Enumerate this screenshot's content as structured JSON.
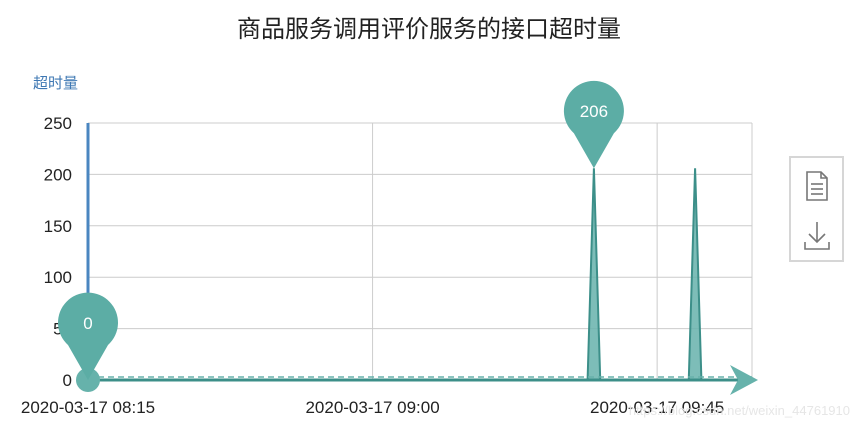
{
  "chart_data": {
    "type": "area",
    "title": "商品服务调用评价服务的接口超时量",
    "ylabel": "超时量",
    "xlabel": "",
    "ylim": [
      0,
      250
    ],
    "yticks": [
      "0",
      "50",
      "100",
      "150",
      "200",
      "250"
    ],
    "x_tick_labels": [
      "2020-03-17 08:15",
      "2020-03-17 09:00",
      "2020-03-17 09:45"
    ],
    "x": [
      "08:15",
      "08:50",
      "09:00",
      "09:34",
      "09:35",
      "09:36",
      "09:50",
      "09:51",
      "09:52",
      "10:00"
    ],
    "values": [
      0,
      0,
      0,
      0,
      206,
      0,
      0,
      206,
      0,
      0
    ],
    "markpoints": [
      {
        "label": "206",
        "x": "09:35",
        "value": 206
      },
      {
        "label": "0",
        "x": "08:15",
        "value": 0
      }
    ],
    "grid": true,
    "colors": {
      "series": "#3c8f89",
      "fill": "#66b2ab",
      "pin": "#5cada5",
      "axis": "#4a86c0",
      "grid": "#cccccc"
    }
  },
  "toolbox": {
    "data_view_icon": "data-view-icon",
    "save_image_icon": "download-icon"
  },
  "watermark": "https://blog.csdn.net/weixin_44761910"
}
